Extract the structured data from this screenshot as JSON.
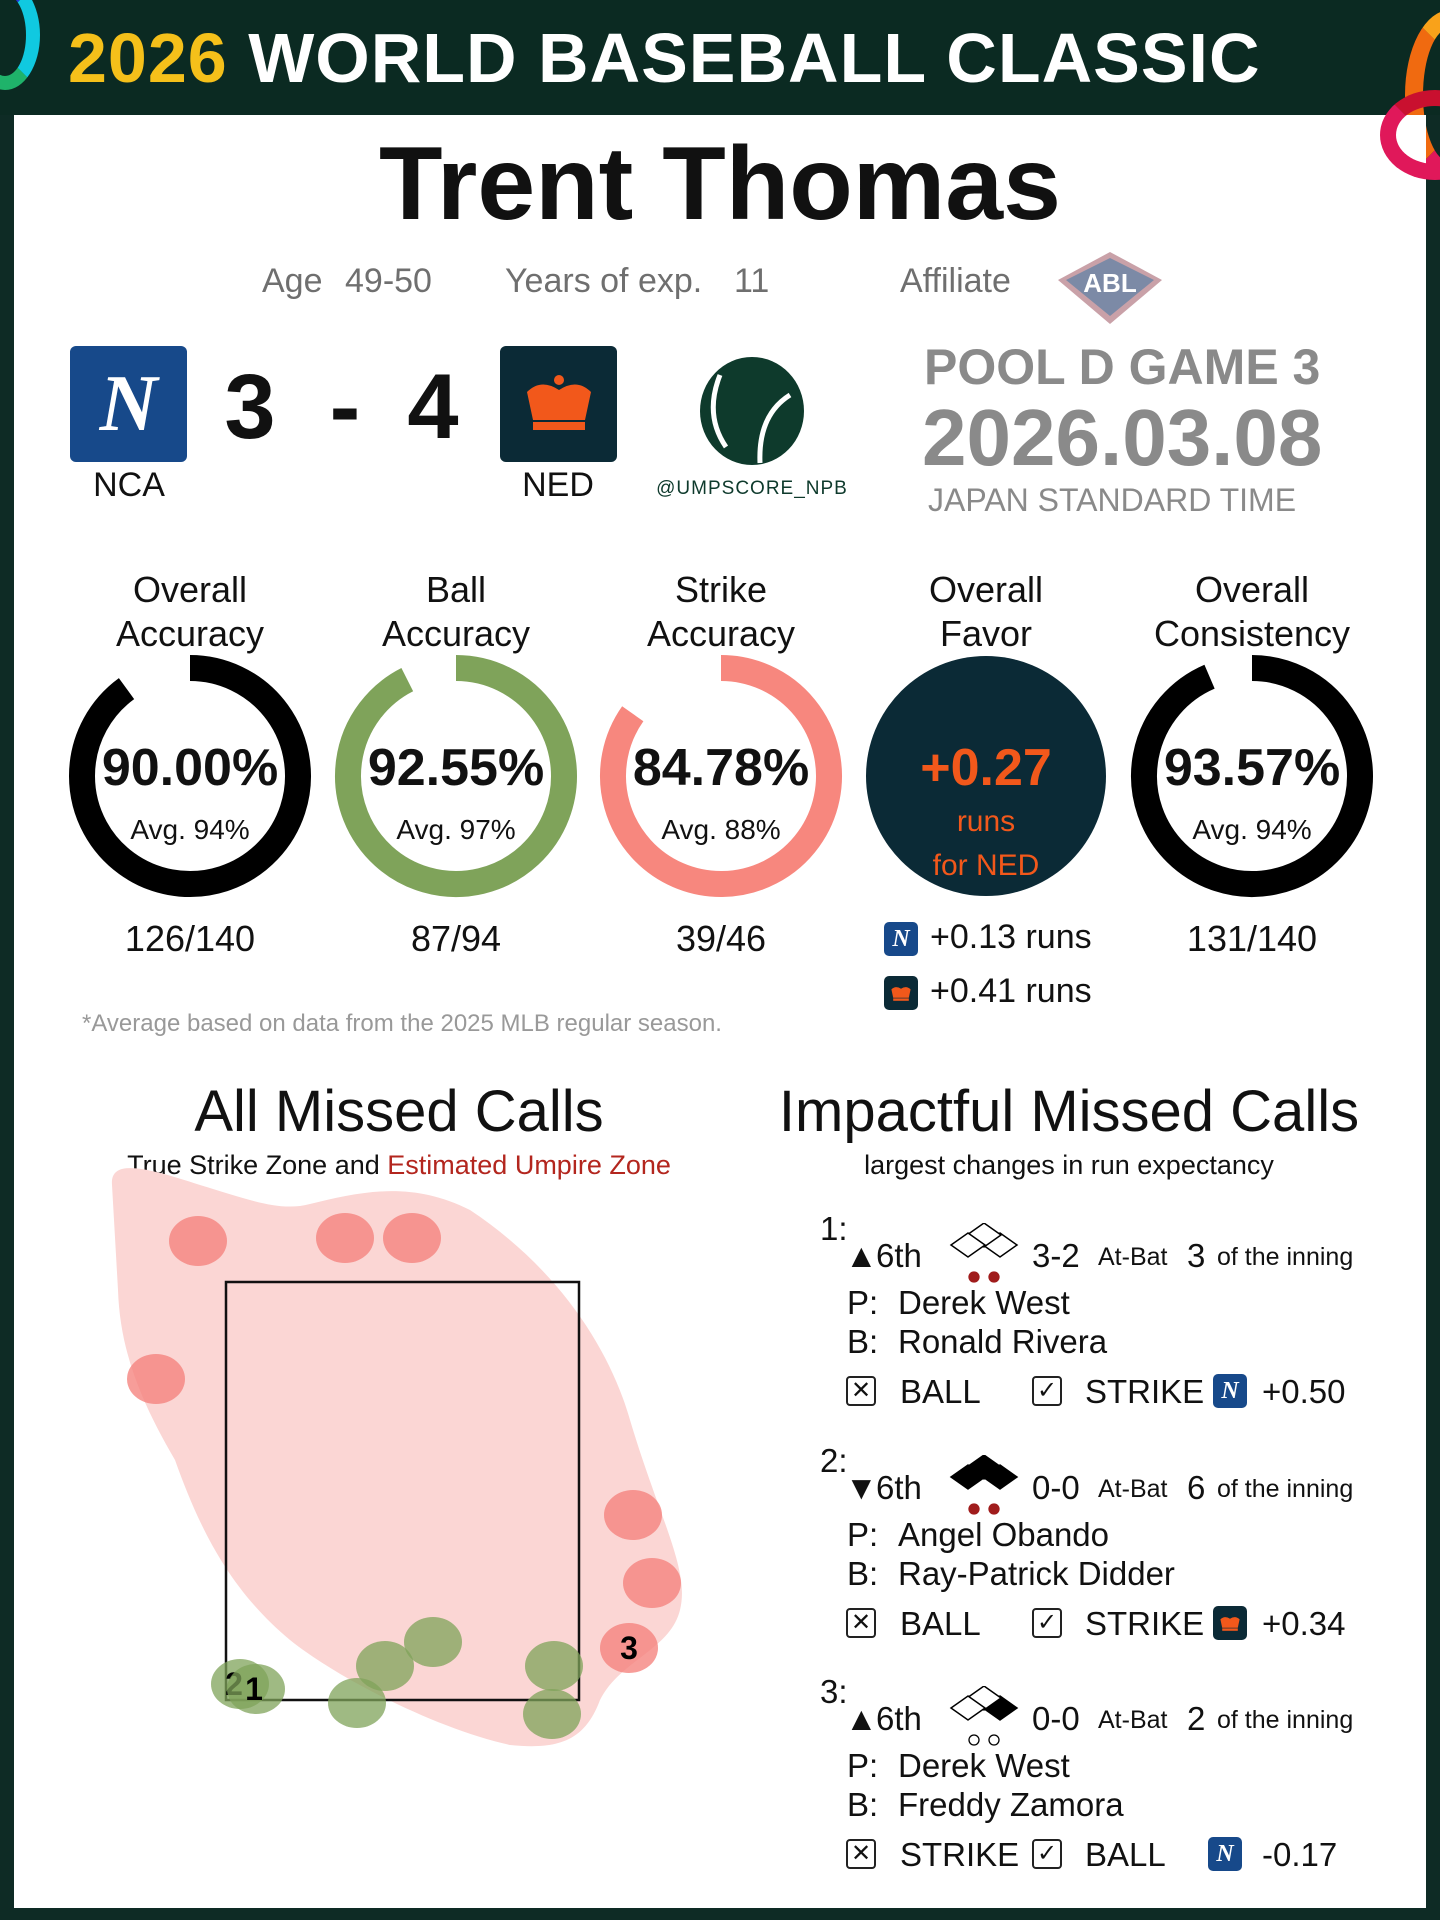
{
  "header": {
    "year": "2026",
    "title": "WORLD BASEBALL CLASSIC"
  },
  "umpire": {
    "name": "Trent Thomas",
    "age_label": "Age",
    "age": "49-50",
    "exp_label": "Years of exp.",
    "exp": "11",
    "affiliate_label": "Affiliate",
    "affiliate_logo_text": "ABL"
  },
  "game": {
    "away": {
      "abbr": "NCA",
      "score": "3",
      "logo": "N"
    },
    "home": {
      "abbr": "NED",
      "score": "4",
      "logo": "crown"
    },
    "dash": "-",
    "handle": "@UMPSCORE_NPB",
    "pool": "POOL D GAME 3",
    "date": "2026.03.08",
    "tz": "JAPAN STANDARD TIME"
  },
  "colors": {
    "frame": "#0e2b25",
    "gold": "#f5c01a",
    "nca": "#17498a",
    "ned": "#0b2a36",
    "orange": "#f2581b",
    "green": "#7fa35a",
    "salmon": "#f7877e",
    "zone": "#fbd6d4"
  },
  "metrics": [
    {
      "title1": "Overall",
      "title2": "Accuracy",
      "value": "90.00%",
      "fraction": 0.9,
      "avg": "Avg. 94%",
      "count": "126/140",
      "color": "#000000"
    },
    {
      "title1": "Ball",
      "title2": "Accuracy",
      "value": "92.55%",
      "fraction": 0.9255,
      "avg": "Avg. 97%",
      "count": "87/94",
      "color": "#7fa35a"
    },
    {
      "title1": "Strike",
      "title2": "Accuracy",
      "value": "84.78%",
      "fraction": 0.8478,
      "avg": "Avg. 88%",
      "count": "39/46",
      "color": "#f7877e"
    },
    {
      "title1": "Overall",
      "title2": "Favor",
      "value": "+0.27",
      "line2": "runs",
      "line3": "for NED",
      "nca_runs": "+0.13 runs",
      "ned_runs": "+0.41 runs"
    },
    {
      "title1": "Overall",
      "title2": "Consistency",
      "value": "93.57%",
      "fraction": 0.9357,
      "avg": "Avg. 94%",
      "count": "131/140",
      "color": "#000000"
    }
  ],
  "footnote": "*Average based on data from the 2025 MLB regular season.",
  "all_missed": {
    "title": "All Missed Calls",
    "sub_a": "True Strike Zone and ",
    "sub_b": "Estimated Umpire Zone",
    "calls": [
      {
        "type": "ball_called_strike"
      },
      {
        "type": "ball_called_strike"
      },
      {
        "type": "ball_called_strike"
      },
      {
        "type": "ball_called_strike"
      },
      {
        "type": "ball_called_strike"
      },
      {
        "type": "ball_called_strike"
      },
      {
        "type": "ball_called_strike",
        "label": "3"
      },
      {
        "type": "strike_called_ball",
        "label": "2"
      },
      {
        "type": "strike_called_ball",
        "label": "1"
      },
      {
        "type": "strike_called_ball"
      },
      {
        "type": "strike_called_ball"
      },
      {
        "type": "strike_called_ball"
      },
      {
        "type": "strike_called_ball"
      },
      {
        "type": "strike_called_ball"
      }
    ]
  },
  "impactful": {
    "title": "Impactful Missed Calls",
    "sub": "largest changes in run expectancy",
    "items": [
      {
        "num": "1:",
        "arrow": "▲",
        "inning": "6th",
        "bases": [
          false,
          false,
          false
        ],
        "outs": 2,
        "count": "3-2",
        "atbat_label": "At-Bat",
        "atbat": "3",
        "atbat_suffix": "of the inning",
        "p_label": "P:",
        "pitcher": "Derek West",
        "b_label": "B:",
        "batter": "Ronald Rivera",
        "wrong": "BALL",
        "right": "STRIKE",
        "team": "NCA",
        "delta": "+0.50"
      },
      {
        "num": "2:",
        "arrow": "▼",
        "inning": "6th",
        "bases": [
          true,
          true,
          true
        ],
        "outs": 2,
        "count": "0-0",
        "atbat_label": "At-Bat",
        "atbat": "6",
        "atbat_suffix": "of the inning",
        "p_label": "P:",
        "pitcher": "Angel Obando",
        "b_label": "B:",
        "batter": "Ray-Patrick Didder",
        "wrong": "BALL",
        "right": "STRIKE",
        "team": "NED",
        "delta": "+0.34"
      },
      {
        "num": "3:",
        "arrow": "▲",
        "inning": "6th",
        "bases": [
          true,
          false,
          false
        ],
        "outs": 0,
        "count": "0-0",
        "atbat_label": "At-Bat",
        "atbat": "2",
        "atbat_suffix": "of the inning",
        "p_label": "P:",
        "pitcher": "Derek West",
        "b_label": "B:",
        "batter": "Freddy Zamora",
        "wrong": "STRIKE",
        "right": "BALL",
        "team": "NCA",
        "delta": "-0.17"
      }
    ]
  }
}
